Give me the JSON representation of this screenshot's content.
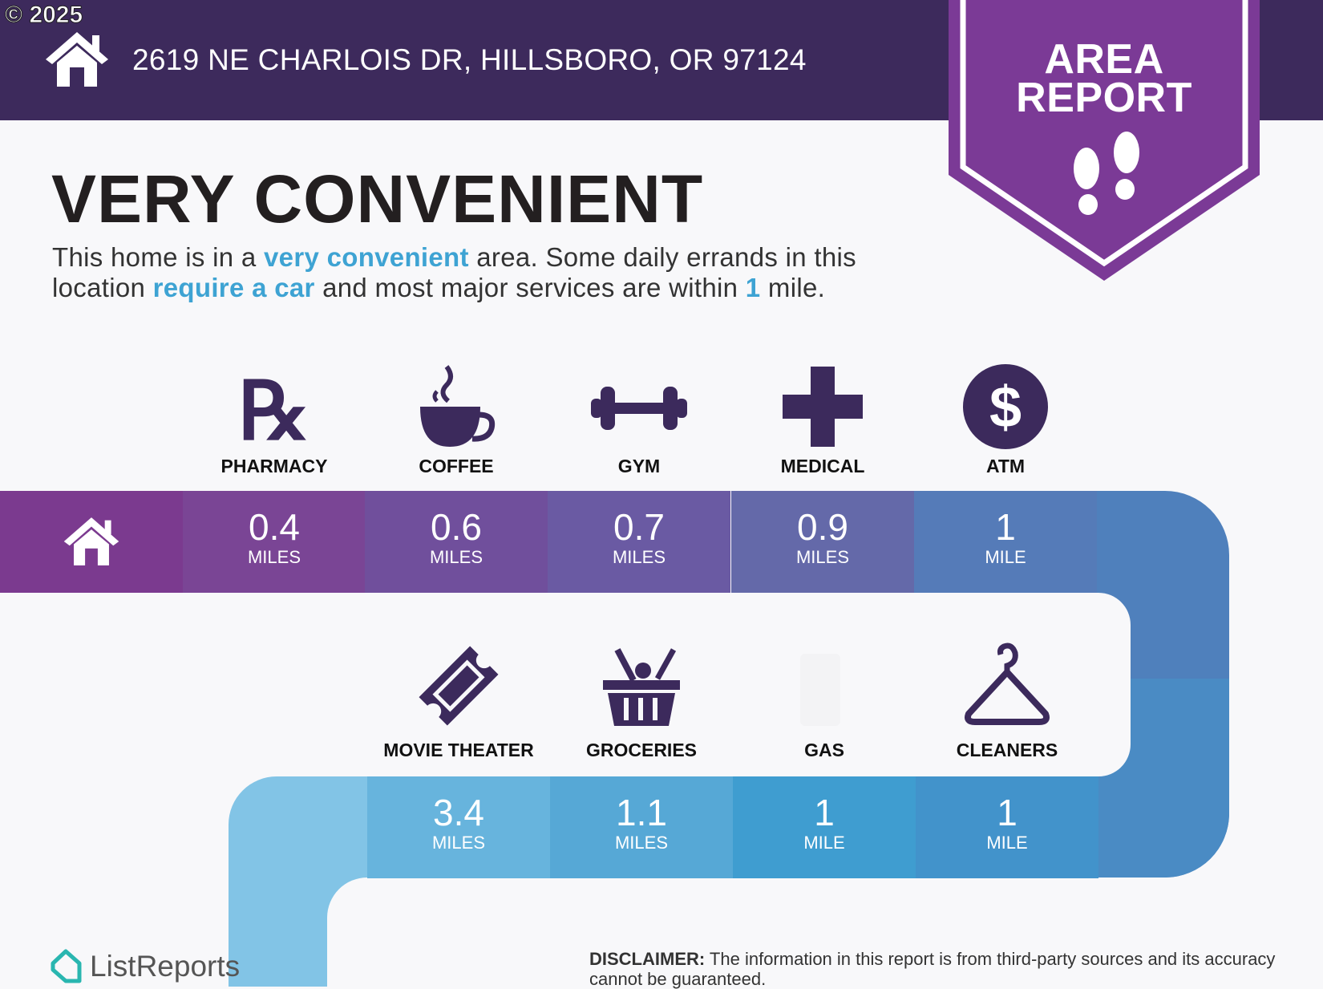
{
  "header": {
    "copyright": "© 2025",
    "address": "2619 NE CHARLOIS DR, HILLSBORO, OR 97124",
    "home_icon": "house-icon"
  },
  "badge": {
    "line1": "AREA",
    "line2": "REPORT",
    "icon": "footprints-icon",
    "color": "#7b3a96"
  },
  "title": "VERY CONVENIENT",
  "description": {
    "p1": "This home is in a ",
    "h1": "very convenient",
    "p2": " area. Some daily errands in this",
    "p3": "location ",
    "h2": "require a car",
    "p4": " and most major services are within ",
    "h3": "1",
    "p5": " mile."
  },
  "row1": [
    {
      "label": "PHARMACY",
      "icon": "rx-icon",
      "value": "0.4",
      "unit": "MILES",
      "color": "#7a4595"
    },
    {
      "label": "COFFEE",
      "icon": "coffee-cup-icon",
      "value": "0.6",
      "unit": "MILES",
      "color": "#704f9c"
    },
    {
      "label": "GYM",
      "icon": "dumbbell-icon",
      "value": "0.7",
      "unit": "MILES",
      "color": "#6a5aa3"
    },
    {
      "label": "MEDICAL",
      "icon": "medical-cross-icon",
      "value": "0.9",
      "unit": "MILES",
      "color": "#6469a9"
    },
    {
      "label": "ATM",
      "icon": "dollar-icon",
      "value": "1",
      "unit": "MILE",
      "color": "#557bb8"
    }
  ],
  "row2": [
    {
      "label": "MOVIE THEATER",
      "icon": "ticket-icon",
      "value": "3.4",
      "unit": "MILES",
      "color": "#67b4dd"
    },
    {
      "label": "GROCERIES",
      "icon": "grocery-basket-icon",
      "value": "1.1",
      "unit": "MILES",
      "color": "#56a8d6"
    },
    {
      "label": "GAS",
      "icon": "gas-pump-icon",
      "value": "1",
      "unit": "MILE",
      "color": "#3f9dd0"
    },
    {
      "label": "CLEANERS",
      "icon": "hanger-icon",
      "value": "1",
      "unit": "MILE",
      "color": "#4293cb"
    }
  ],
  "footer": {
    "brand": "ListReports",
    "disclaimer_label": "DISCLAIMER:",
    "disclaimer": " The information in this report is from third-party sources and its accuracy cannot be guaranteed."
  }
}
